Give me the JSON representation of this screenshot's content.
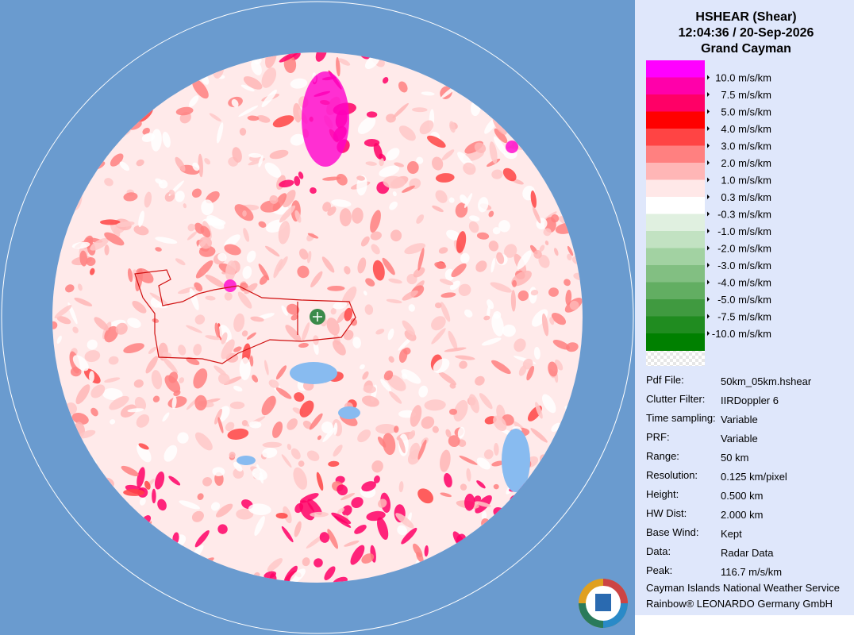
{
  "header": {
    "product": "HSHEAR (Shear)",
    "time": "12:04:36 / 20-Sep-2026",
    "site": "Grand Cayman"
  },
  "legend": [
    {
      "color": "#ff00ff",
      "label": "10.0 m/s/km"
    },
    {
      "color": "#ff00aa",
      "label": "7.5 m/s/km"
    },
    {
      "color": "#ff0066",
      "label": "5.0 m/s/km"
    },
    {
      "color": "#ff0000",
      "label": "4.0 m/s/km"
    },
    {
      "color": "#ff4444",
      "label": "3.0 m/s/km"
    },
    {
      "color": "#ff8080",
      "label": "2.0 m/s/km"
    },
    {
      "color": "#ffb6b6",
      "label": "1.0 m/s/km"
    },
    {
      "color": "#ffe8e8",
      "label": "0.3 m/s/km"
    },
    {
      "color": "#ffffff",
      "label": "-0.3 m/s/km"
    },
    {
      "color": "#e0f0e0",
      "label": "-1.0 m/s/km"
    },
    {
      "color": "#c2e2c2",
      "label": "-2.0 m/s/km"
    },
    {
      "color": "#a2d2a2",
      "label": "-3.0 m/s/km"
    },
    {
      "color": "#82bf82",
      "label": "-4.0 m/s/km"
    },
    {
      "color": "#62ae62",
      "label": "-5.0 m/s/km"
    },
    {
      "color": "#409a40",
      "label": "-7.5 m/s/km"
    },
    {
      "color": "#208c20",
      "label": "-10.0 m/s/km"
    },
    {
      "color": "#008000"
    }
  ],
  "info": [
    {
      "label": "Pdf File:",
      "value": "50km_05km.hshear"
    },
    {
      "label": "Clutter Filter:",
      "value": "IIRDoppler 6"
    },
    {
      "label": "Time sampling:",
      "value": "Variable"
    },
    {
      "label": "PRF:",
      "value": "Variable"
    },
    {
      "label": "Range:",
      "value": "50 km"
    },
    {
      "label": "Resolution:",
      "value": "0.125 km/pixel"
    },
    {
      "label": "Height:",
      "value": "0.500 km"
    },
    {
      "label": "HW Dist:",
      "value": "2.000 km"
    },
    {
      "label": "Base Wind:",
      "value": "Kept"
    },
    {
      "label": "Data:",
      "value": "Radar Data"
    },
    {
      "label": "Peak:",
      "value": "116.7 m/s/km"
    }
  ],
  "footer": [
    "Cayman Islands National Weather Service",
    "Rainbow® LEONARDO Germany GmbH"
  ]
}
